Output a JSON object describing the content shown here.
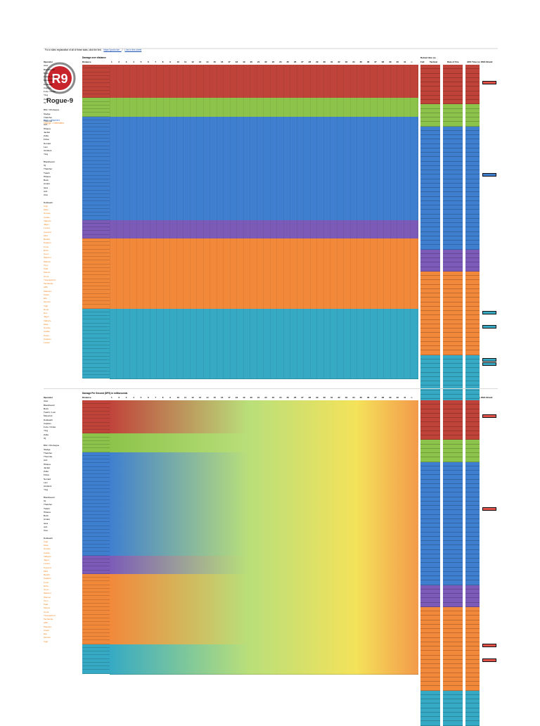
{
  "header": {
    "intro": "For a video explanation of all of these stats, click the link:",
    "link1": "https://youtu.be/...",
    "sep": "/",
    "link2": "Link to this sheet"
  },
  "logo": {
    "text": "Rogue-9",
    "mark": "R9"
  },
  "legend": {
    "blue": "Blue = Attackers",
    "orange": "Orange = Defenders"
  },
  "sections": [
    {
      "title": "Damage over distance",
      "label_col": "Operator",
      "weapon_col": "Distance",
      "right_headers": [
        "Reload time (s)",
        "Full",
        "Tactical",
        "Rate of Fire",
        "ADS Time (s)",
        "With Shield"
      ]
    },
    {
      "title": "Damage Per Second (DPS) in milliseconds",
      "label_col": "Operator",
      "weapon_col": "Distance",
      "right_headers": [
        "Reload time (s)",
        "Full",
        "Tactical",
        "Rate of Fire",
        "ADS Time (s)",
        "With Shield"
      ]
    }
  ],
  "distances": [
    "1",
    "2",
    "3",
    "4",
    "5",
    "6",
    "7",
    "8",
    "9",
    "10",
    "11",
    "12",
    "13",
    "14",
    "15",
    "16",
    "17",
    "18",
    "19",
    "20",
    "21",
    "22",
    "23",
    "24",
    "25",
    "26",
    "27",
    "28",
    "29",
    "30",
    "31",
    "32",
    "33",
    "34",
    "35",
    "36",
    "37",
    "38",
    "39",
    "40",
    "41",
    "∞"
  ],
  "operators_top": [
    "Operator",
    "Glaz",
    "Blackbeard",
    "Buck",
    "Twitch / Lion",
    "Maverick",
    "Dokkaebi",
    "Capitan",
    "Fuze / Finka",
    "Ying",
    "Zofia",
    "IQ",
    "",
    "Blitz / Montagne",
    "Sledge",
    "Thatcher",
    "Thermite",
    "Ash",
    "Hibana",
    "Jackal",
    "Zofia",
    "Finka",
    "Nomad",
    "Lion",
    "Gridlock",
    "Ying",
    "",
    "Blackbeard",
    "IQ",
    "Thatcher",
    "Twitch",
    "Hibana",
    "Buck",
    "Amaru",
    "Iana",
    "Ash",
    "Osa",
    "",
    "Dokkaebi",
    "Vigil",
    "Mute",
    "Smoke",
    "Castle",
    "Valkyrie",
    "Jäger",
    "Lesion",
    "Caveira",
    "Mira",
    "Bandit",
    "Kapkan",
    "Frost",
    "Echo",
    "Goyo",
    "Warden",
    "Wamai",
    "Oryx",
    "Kaid",
    "Melusi",
    "Aruni",
    "Thunderbird",
    "Tachanka",
    "Alibi",
    "Maestro",
    "Clash",
    "Ela",
    "Mozzie",
    "Vigil",
    "Rook",
    "Doc",
    "Jäger",
    "Valkyrie",
    "Mute",
    "Smoke",
    "Castle",
    "Pulse",
    "Kapkan",
    "Lesion"
  ],
  "operators_bottom": [
    "Operator",
    "Glaz",
    "Blackbeard",
    "Buck",
    "Twitch / Lion",
    "Maverick",
    "Dokkaebi",
    "Capitan",
    "Fuze / Finka",
    "Ying",
    "Zofia",
    "IQ",
    "",
    "Blitz / Montagne",
    "Sledge",
    "Thatcher",
    "Thermite",
    "Ash",
    "Hibana",
    "Jackal",
    "Zofia",
    "Finka",
    "Nomad",
    "Lion",
    "Gridlock",
    "Ying",
    "",
    "Blackbeard",
    "IQ",
    "Thatcher",
    "Twitch",
    "Hibana",
    "Buck",
    "Amaru",
    "Iana",
    "Ash",
    "Osa",
    "",
    "Dokkaebi",
    "Vigil",
    "Mute",
    "Smoke",
    "Castle",
    "Valkyrie",
    "Jäger",
    "Lesion",
    "Caveira",
    "Mira",
    "Bandit",
    "Kapkan",
    "Frost",
    "Echo",
    "Goyo",
    "Warden",
    "Wamai",
    "Oryx",
    "Kaid",
    "Melusi",
    "Aruni",
    "Thunderbird",
    "Tachanka",
    "Alibi",
    "Maestro",
    "Clash",
    "Ela",
    "Mozzie",
    "Vigil"
  ],
  "colors": {
    "red": "#c0433a",
    "green": "#8cc34a",
    "blue": "#3f7fd0",
    "purple": "#7c5bb8",
    "orange": "#f2883a",
    "teal": "#36aac4",
    "yellow": "#f4e25a",
    "lgreen": "#b9df7a"
  }
}
